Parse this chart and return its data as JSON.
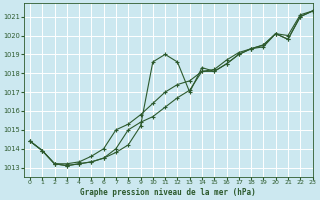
{
  "title": "Graphe pression niveau de la mer (hPa)",
  "background_color": "#cce8f0",
  "grid_color": "#b0d8e0",
  "line_color": "#2d5a2d",
  "xlim": [
    -0.5,
    23
  ],
  "ylim": [
    1012.5,
    1021.7
  ],
  "yticks": [
    1013,
    1014,
    1015,
    1016,
    1017,
    1018,
    1019,
    1020,
    1021
  ],
  "xticks": [
    0,
    1,
    2,
    3,
    4,
    5,
    6,
    7,
    8,
    9,
    10,
    11,
    12,
    13,
    14,
    15,
    16,
    17,
    18,
    19,
    20,
    21,
    22,
    23
  ],
  "series1_x": [
    0,
    1,
    2,
    3,
    4,
    5,
    6,
    7,
    8,
    9,
    10,
    11,
    12,
    13,
    14,
    15,
    16,
    17,
    18,
    19,
    20,
    21,
    22,
    23
  ],
  "series1_y": [
    1014.4,
    1013.9,
    1013.2,
    1013.1,
    1013.2,
    1013.3,
    1013.5,
    1013.8,
    1014.2,
    1015.2,
    1018.6,
    1019.0,
    1018.6,
    1017.0,
    1018.3,
    1018.1,
    1018.5,
    1019.0,
    1019.3,
    1019.4,
    1020.1,
    1019.8,
    1021.0,
    1021.3
  ],
  "series2_x": [
    0,
    1,
    2,
    3,
    4,
    5,
    6,
    7,
    8,
    9,
    10,
    11,
    12,
    13,
    14,
    15,
    16,
    17,
    18,
    19,
    20,
    21,
    22,
    23
  ],
  "series2_y": [
    1014.4,
    1013.9,
    1013.2,
    1013.1,
    1013.2,
    1013.3,
    1013.5,
    1014.0,
    1015.0,
    1015.4,
    1015.7,
    1016.2,
    1016.7,
    1017.1,
    1018.1,
    1018.1,
    1018.5,
    1019.0,
    1019.3,
    1019.5,
    1020.1,
    1019.8,
    1021.0,
    1021.3
  ],
  "series3_x": [
    0,
    1,
    2,
    3,
    4,
    5,
    6,
    7,
    8,
    9,
    10,
    11,
    12,
    13,
    14,
    15,
    16,
    17,
    18,
    19,
    20,
    21,
    22,
    23
  ],
  "series3_y": [
    1014.4,
    1013.9,
    1013.2,
    1013.2,
    1013.3,
    1013.6,
    1014.0,
    1015.0,
    1015.3,
    1015.8,
    1016.4,
    1017.0,
    1017.4,
    1017.6,
    1018.1,
    1018.2,
    1018.7,
    1019.1,
    1019.3,
    1019.5,
    1020.1,
    1020.0,
    1021.1,
    1021.3
  ]
}
